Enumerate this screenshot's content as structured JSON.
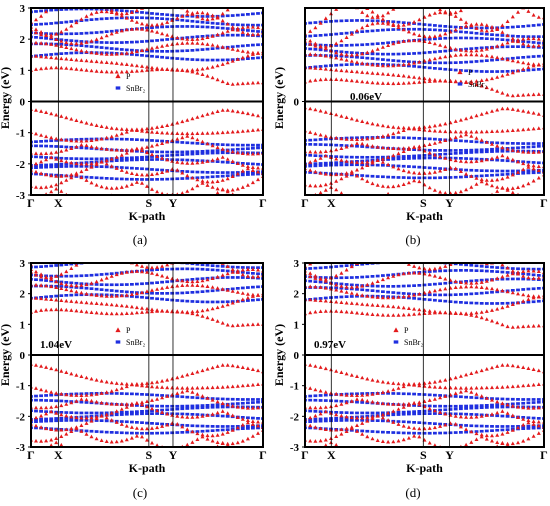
{
  "figure": {
    "ylabel": "Energy (eV)",
    "xlabel": "K-path",
    "colors": {
      "P": "#e31a1c",
      "SnBr2": "#1f2fe0",
      "axis": "#000000"
    }
  },
  "chart_data": [
    {
      "type": "scatter",
      "panel_label": "(a)",
      "ylabel": "Energy (eV)",
      "xlabel": "K-path",
      "ylim": [
        -3,
        3
      ],
      "yticks": [
        "3",
        "2",
        "1",
        "0",
        "-1",
        "-2",
        "-3"
      ],
      "kpoints": [
        "Γ",
        "X",
        "S",
        "Y",
        "Γ"
      ],
      "gap_label": "",
      "legend": [
        "P",
        "SnBr₂"
      ],
      "legend_position": "center-left",
      "series": [
        {
          "name": "P",
          "marker": "triangle",
          "color": "#e31a1c"
        },
        {
          "name": "SnBr₂",
          "marker": "square",
          "color": "#1f2fe0"
        }
      ]
    },
    {
      "type": "scatter",
      "panel_label": "(b)",
      "ylabel": "Energy (eV)",
      "xlabel": "K-path",
      "ylim": [
        -3,
        3
      ],
      "yticks": [
        "0"
      ],
      "kpoints": [
        "Γ",
        "X",
        "S",
        "Y",
        "Γ"
      ],
      "gap_label": "0.06eV",
      "legend": [
        "P",
        "SnBr₂"
      ],
      "legend_position": "right",
      "series": [
        {
          "name": "P",
          "marker": "triangle",
          "color": "#e31a1c"
        },
        {
          "name": "SnBr₂",
          "marker": "square",
          "color": "#1f2fe0"
        }
      ]
    },
    {
      "type": "scatter",
      "panel_label": "(c)",
      "ylabel": "Energy (eV)",
      "xlabel": "K-path",
      "ylim": [
        -3,
        3
      ],
      "yticks": [
        "3",
        "2",
        "1",
        "0",
        "-1",
        "-2",
        "-3"
      ],
      "kpoints": [
        "Γ",
        "X",
        "S",
        "Y",
        "Γ"
      ],
      "gap_label": "1.04eV",
      "legend": [
        "P",
        "SnBr₂"
      ],
      "legend_position": "center",
      "series": [
        {
          "name": "P",
          "marker": "triangle",
          "color": "#e31a1c"
        },
        {
          "name": "SnBr₂",
          "marker": "square",
          "color": "#1f2fe0"
        }
      ]
    },
    {
      "type": "scatter",
      "panel_label": "(d)",
      "ylabel": "Energy (eV)",
      "xlabel": "K-path",
      "ylim": [
        -3,
        3
      ],
      "yticks": [
        "3",
        "2",
        "1",
        "0",
        "-1",
        "-2",
        "-3"
      ],
      "kpoints": [
        "Γ",
        "X",
        "S",
        "Y",
        "Γ"
      ],
      "gap_label": "0.97eV",
      "legend": [
        "P",
        "SnBr₂"
      ],
      "legend_position": "center",
      "series": [
        {
          "name": "P",
          "marker": "triangle",
          "color": "#e31a1c"
        },
        {
          "name": "SnBr₂",
          "marker": "square",
          "color": "#1f2fe0"
        }
      ]
    }
  ]
}
